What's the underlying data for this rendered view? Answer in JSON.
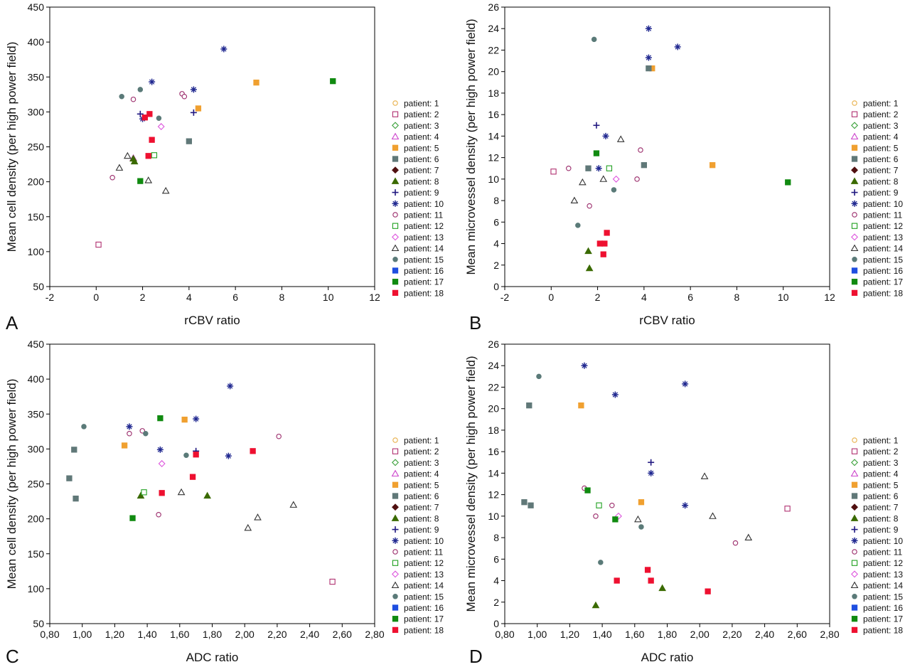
{
  "legend": {
    "entries": [
      {
        "label": "patient: 1",
        "marker": "circle",
        "filled": false,
        "color": "#e8b04a"
      },
      {
        "label": "patient: 2",
        "marker": "square",
        "filled": false,
        "color": "#b03070"
      },
      {
        "label": "patient: 3",
        "marker": "diamond",
        "filled": false,
        "color": "#3aa03a"
      },
      {
        "label": "patient: 4",
        "marker": "triangle",
        "filled": false,
        "color": "#cc44cc"
      },
      {
        "label": "patient: 5",
        "marker": "square",
        "filled": true,
        "color": "#f0a030"
      },
      {
        "label": "patient: 6",
        "marker": "square",
        "filled": true,
        "color": "#607878"
      },
      {
        "label": "patient: 7",
        "marker": "diamond",
        "filled": true,
        "color": "#501010"
      },
      {
        "label": "patient: 8",
        "marker": "triangle",
        "filled": true,
        "color": "#3a6a00"
      },
      {
        "label": "patient: 9",
        "marker": "plus",
        "filled": false,
        "color": "#201880"
      },
      {
        "label": "patient: 10",
        "marker": "asterisk",
        "filled": false,
        "color": "#202890"
      },
      {
        "label": "patient: 11",
        "marker": "circle",
        "filled": false,
        "color": "#9a2a6a"
      },
      {
        "label": "patient: 12",
        "marker": "square",
        "filled": false,
        "color": "#20a020"
      },
      {
        "label": "patient: 13",
        "marker": "diamond",
        "filled": false,
        "color": "#dd55dd"
      },
      {
        "label": "patient: 14",
        "marker": "triangle",
        "filled": false,
        "color": "#333333"
      },
      {
        "label": "patient: 15",
        "marker": "circle",
        "filled": true,
        "color": "#5a7a78"
      },
      {
        "label": "patient: 16",
        "marker": "square",
        "filled": true,
        "color": "#1e4ee0"
      },
      {
        "label": "patient: 17",
        "marker": "square",
        "filled": true,
        "color": "#108a10"
      },
      {
        "label": "patient: 18",
        "marker": "square",
        "filled": true,
        "color": "#ee1030"
      }
    ]
  },
  "chart_data": [
    {
      "panel": "A",
      "type": "scatter",
      "xlabel": "rCBV ratio",
      "ylabel": "Mean cell density (per high power field)",
      "xlim": [
        -2,
        12
      ],
      "ylim": [
        50,
        450
      ],
      "xticks": [
        -2,
        0,
        2,
        4,
        6,
        8,
        10,
        12
      ],
      "yticks": [
        50,
        100,
        150,
        200,
        250,
        300,
        350,
        400,
        450
      ],
      "xticklabels": [
        "-2",
        "0",
        "2",
        "4",
        "6",
        "8",
        "10",
        "12"
      ],
      "yticklabels": [
        "50",
        "100",
        "150",
        "200",
        "250",
        "300",
        "350",
        "400",
        "450"
      ],
      "legend": "right",
      "grid": false,
      "points": [
        {
          "p": 2,
          "x": 0.1,
          "y": 110
        },
        {
          "p": 4,
          "x": 1.6,
          "y": 234
        },
        {
          "p": 5,
          "x": 6.9,
          "y": 342
        },
        {
          "p": 5,
          "x": 4.4,
          "y": 305
        },
        {
          "p": 6,
          "x": 4.0,
          "y": 258
        },
        {
          "p": 8,
          "x": 1.6,
          "y": 233
        },
        {
          "p": 8,
          "x": 1.65,
          "y": 229
        },
        {
          "p": 9,
          "x": 1.9,
          "y": 297
        },
        {
          "p": 9,
          "x": 4.2,
          "y": 299
        },
        {
          "p": 10,
          "x": 5.5,
          "y": 390
        },
        {
          "p": 10,
          "x": 2.4,
          "y": 343
        },
        {
          "p": 10,
          "x": 4.2,
          "y": 332
        },
        {
          "p": 10,
          "x": 2.0,
          "y": 290
        },
        {
          "p": 11,
          "x": 0.7,
          "y": 206
        },
        {
          "p": 11,
          "x": 1.6,
          "y": 318
        },
        {
          "p": 11,
          "x": 3.7,
          "y": 326
        },
        {
          "p": 11,
          "x": 3.8,
          "y": 322
        },
        {
          "p": 12,
          "x": 2.5,
          "y": 238
        },
        {
          "p": 13,
          "x": 2.8,
          "y": 279
        },
        {
          "p": 14,
          "x": 1.0,
          "y": 220
        },
        {
          "p": 14,
          "x": 1.35,
          "y": 237
        },
        {
          "p": 14,
          "x": 2.25,
          "y": 202
        },
        {
          "p": 14,
          "x": 3.0,
          "y": 187
        },
        {
          "p": 15,
          "x": 1.1,
          "y": 322
        },
        {
          "p": 15,
          "x": 1.9,
          "y": 332
        },
        {
          "p": 15,
          "x": 2.7,
          "y": 291
        },
        {
          "p": 17,
          "x": 10.2,
          "y": 344
        },
        {
          "p": 17,
          "x": 1.9,
          "y": 201
        },
        {
          "p": 18,
          "x": 2.3,
          "y": 297
        },
        {
          "p": 18,
          "x": 2.1,
          "y": 292
        },
        {
          "p": 18,
          "x": 2.4,
          "y": 260
        },
        {
          "p": 18,
          "x": 2.25,
          "y": 237
        }
      ]
    },
    {
      "panel": "B",
      "type": "scatter",
      "xlabel": "rCBV ratio",
      "ylabel": "Mean microvessel density (per high power field)",
      "xlim": [
        -2,
        12
      ],
      "ylim": [
        0,
        26
      ],
      "xticks": [
        -2,
        0,
        2,
        4,
        6,
        8,
        10,
        12
      ],
      "yticks": [
        0,
        2,
        4,
        6,
        8,
        10,
        12,
        14,
        16,
        18,
        20,
        22,
        24,
        26
      ],
      "xticklabels": [
        "-2",
        "0",
        "2",
        "4",
        "6",
        "8",
        "10",
        "12"
      ],
      "yticklabels": [
        "0",
        "2",
        "4",
        "6",
        "8",
        "10",
        "12",
        "14",
        "16",
        "18",
        "20",
        "22",
        "24",
        "26"
      ],
      "legend": "right",
      "grid": false,
      "points": [
        {
          "p": 2,
          "x": 0.1,
          "y": 10.7
        },
        {
          "p": 5,
          "x": 4.35,
          "y": 20.3
        },
        {
          "p": 5,
          "x": 6.95,
          "y": 11.3
        },
        {
          "p": 6,
          "x": 4.2,
          "y": 20.3
        },
        {
          "p": 6,
          "x": 1.6,
          "y": 11.0
        },
        {
          "p": 6,
          "x": 4.0,
          "y": 11.3
        },
        {
          "p": 8,
          "x": 1.6,
          "y": 3.3
        },
        {
          "p": 8,
          "x": 1.65,
          "y": 1.7
        },
        {
          "p": 9,
          "x": 1.95,
          "y": 15.0
        },
        {
          "p": 10,
          "x": 4.2,
          "y": 24.0
        },
        {
          "p": 10,
          "x": 4.2,
          "y": 21.3
        },
        {
          "p": 10,
          "x": 5.45,
          "y": 22.3
        },
        {
          "p": 10,
          "x": 2.35,
          "y": 14.0
        },
        {
          "p": 10,
          "x": 2.05,
          "y": 11.0
        },
        {
          "p": 11,
          "x": 0.75,
          "y": 11.0
        },
        {
          "p": 11,
          "x": 3.85,
          "y": 12.7
        },
        {
          "p": 11,
          "x": 3.7,
          "y": 10.0
        },
        {
          "p": 11,
          "x": 1.65,
          "y": 7.5
        },
        {
          "p": 12,
          "x": 2.5,
          "y": 11.0
        },
        {
          "p": 13,
          "x": 2.8,
          "y": 10.0
        },
        {
          "p": 14,
          "x": 3.0,
          "y": 13.7
        },
        {
          "p": 14,
          "x": 1.35,
          "y": 9.7
        },
        {
          "p": 14,
          "x": 2.25,
          "y": 10.0
        },
        {
          "p": 14,
          "x": 1.0,
          "y": 8.0
        },
        {
          "p": 15,
          "x": 1.85,
          "y": 23.0
        },
        {
          "p": 15,
          "x": 2.7,
          "y": 9.0
        },
        {
          "p": 15,
          "x": 1.15,
          "y": 5.7
        },
        {
          "p": 17,
          "x": 1.95,
          "y": 12.4
        },
        {
          "p": 17,
          "x": 10.2,
          "y": 9.7
        },
        {
          "p": 18,
          "x": 2.4,
          "y": 5.0
        },
        {
          "p": 18,
          "x": 2.1,
          "y": 4.0
        },
        {
          "p": 18,
          "x": 2.3,
          "y": 4.0
        },
        {
          "p": 18,
          "x": 2.25,
          "y": 3.0
        }
      ]
    },
    {
      "panel": "C",
      "type": "scatter",
      "xlabel": "ADC ratio",
      "ylabel": "Mean cell density (per high power field)",
      "xlim": [
        0.8,
        2.8
      ],
      "ylim": [
        50,
        450
      ],
      "xticks": [
        0.8,
        1.0,
        1.2,
        1.4,
        1.6,
        1.8,
        2.0,
        2.2,
        2.4,
        2.6,
        2.8
      ],
      "yticks": [
        50,
        100,
        150,
        200,
        250,
        300,
        350,
        400,
        450
      ],
      "xticklabels": [
        "0,80",
        "1,00",
        "1,20",
        "1,40",
        "1,60",
        "1,80",
        "2,00",
        "2,20",
        "2,40",
        "2,60",
        "2,80"
      ],
      "yticklabels": [
        "50",
        "100",
        "150",
        "200",
        "250",
        "300",
        "350",
        "400",
        "450"
      ],
      "legend": "right",
      "grid": false,
      "points": [
        {
          "p": 2,
          "x": 2.54,
          "y": 110
        },
        {
          "p": 5,
          "x": 1.26,
          "y": 305
        },
        {
          "p": 5,
          "x": 1.63,
          "y": 342
        },
        {
          "p": 6,
          "x": 0.95,
          "y": 299
        },
        {
          "p": 6,
          "x": 0.92,
          "y": 258
        },
        {
          "p": 6,
          "x": 0.96,
          "y": 229
        },
        {
          "p": 8,
          "x": 1.36,
          "y": 233
        },
        {
          "p": 8,
          "x": 1.77,
          "y": 233
        },
        {
          "p": 9,
          "x": 1.7,
          "y": 297
        },
        {
          "p": 10,
          "x": 1.91,
          "y": 390
        },
        {
          "p": 10,
          "x": 1.29,
          "y": 332
        },
        {
          "p": 10,
          "x": 1.7,
          "y": 343
        },
        {
          "p": 10,
          "x": 1.48,
          "y": 299
        },
        {
          "p": 10,
          "x": 1.9,
          "y": 290
        },
        {
          "p": 11,
          "x": 1.29,
          "y": 322
        },
        {
          "p": 11,
          "x": 1.37,
          "y": 326
        },
        {
          "p": 11,
          "x": 2.21,
          "y": 318
        },
        {
          "p": 11,
          "x": 1.47,
          "y": 206
        },
        {
          "p": 12,
          "x": 1.38,
          "y": 238
        },
        {
          "p": 13,
          "x": 1.49,
          "y": 279
        },
        {
          "p": 14,
          "x": 1.61,
          "y": 238
        },
        {
          "p": 14,
          "x": 2.08,
          "y": 202
        },
        {
          "p": 14,
          "x": 2.02,
          "y": 187
        },
        {
          "p": 14,
          "x": 2.3,
          "y": 220
        },
        {
          "p": 15,
          "x": 1.01,
          "y": 332
        },
        {
          "p": 15,
          "x": 1.39,
          "y": 322
        },
        {
          "p": 15,
          "x": 1.64,
          "y": 291
        },
        {
          "p": 17,
          "x": 1.48,
          "y": 344
        },
        {
          "p": 17,
          "x": 1.31,
          "y": 201
        },
        {
          "p": 18,
          "x": 1.7,
          "y": 292
        },
        {
          "p": 18,
          "x": 2.05,
          "y": 297
        },
        {
          "p": 18,
          "x": 1.68,
          "y": 260
        },
        {
          "p": 18,
          "x": 1.49,
          "y": 237
        }
      ]
    },
    {
      "panel": "D",
      "type": "scatter",
      "xlabel": "ADC ratio",
      "ylabel": "Mean microvessel density (per high power field)",
      "xlim": [
        0.8,
        2.8
      ],
      "ylim": [
        0,
        26
      ],
      "xticks": [
        0.8,
        1.0,
        1.2,
        1.4,
        1.6,
        1.8,
        2.0,
        2.2,
        2.4,
        2.6,
        2.8
      ],
      "yticks": [
        0,
        2,
        4,
        6,
        8,
        10,
        12,
        14,
        16,
        18,
        20,
        22,
        24,
        26
      ],
      "xticklabels": [
        "0,80",
        "1,00",
        "1,20",
        "1,40",
        "1,60",
        "1,80",
        "2,00",
        "2,20",
        "2,40",
        "2,60",
        "2,80"
      ],
      "yticklabels": [
        "0",
        "2",
        "4",
        "6",
        "8",
        "10",
        "12",
        "14",
        "16",
        "18",
        "20",
        "22",
        "24",
        "26"
      ],
      "legend": "right",
      "grid": false,
      "points": [
        {
          "p": 2,
          "x": 2.54,
          "y": 10.7
        },
        {
          "p": 5,
          "x": 1.27,
          "y": 20.3
        },
        {
          "p": 5,
          "x": 1.64,
          "y": 11.3
        },
        {
          "p": 6,
          "x": 0.95,
          "y": 20.3
        },
        {
          "p": 6,
          "x": 0.92,
          "y": 11.3
        },
        {
          "p": 6,
          "x": 0.96,
          "y": 11.0
        },
        {
          "p": 8,
          "x": 1.36,
          "y": 1.7
        },
        {
          "p": 8,
          "x": 1.77,
          "y": 3.3
        },
        {
          "p": 9,
          "x": 1.7,
          "y": 15.0
        },
        {
          "p": 10,
          "x": 1.29,
          "y": 24.0
        },
        {
          "p": 10,
          "x": 1.48,
          "y": 21.3
        },
        {
          "p": 10,
          "x": 1.91,
          "y": 22.3
        },
        {
          "p": 10,
          "x": 1.7,
          "y": 14.0
        },
        {
          "p": 10,
          "x": 1.91,
          "y": 11.0
        },
        {
          "p": 11,
          "x": 1.29,
          "y": 12.6
        },
        {
          "p": 11,
          "x": 1.36,
          "y": 10.0
        },
        {
          "p": 11,
          "x": 1.46,
          "y": 11.0
        },
        {
          "p": 11,
          "x": 2.22,
          "y": 7.5
        },
        {
          "p": 12,
          "x": 1.38,
          "y": 11.0
        },
        {
          "p": 13,
          "x": 1.5,
          "y": 10.0
        },
        {
          "p": 14,
          "x": 2.03,
          "y": 13.7
        },
        {
          "p": 14,
          "x": 1.62,
          "y": 9.7
        },
        {
          "p": 14,
          "x": 2.08,
          "y": 10.0
        },
        {
          "p": 14,
          "x": 2.3,
          "y": 8.0
        },
        {
          "p": 15,
          "x": 1.01,
          "y": 23.0
        },
        {
          "p": 15,
          "x": 1.64,
          "y": 9.0
        },
        {
          "p": 15,
          "x": 1.39,
          "y": 5.7
        },
        {
          "p": 17,
          "x": 1.31,
          "y": 12.4
        },
        {
          "p": 17,
          "x": 1.48,
          "y": 9.7
        },
        {
          "p": 18,
          "x": 1.68,
          "y": 5.0
        },
        {
          "p": 18,
          "x": 1.49,
          "y": 4.0
        },
        {
          "p": 18,
          "x": 1.7,
          "y": 4.0
        },
        {
          "p": 18,
          "x": 2.05,
          "y": 3.0
        }
      ]
    }
  ]
}
